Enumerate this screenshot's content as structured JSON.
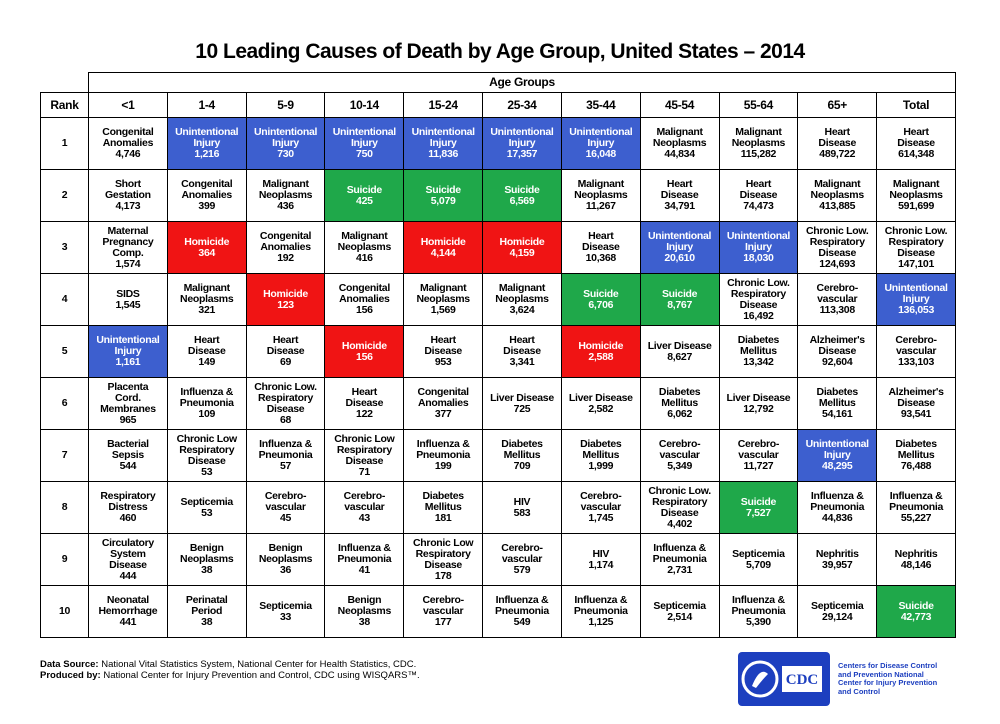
{
  "header": {
    "title": "10 Leading Causes of Death by Age Group, United States – 2014"
  },
  "table": {
    "group_label": "Age Groups",
    "rank_label": "Rank",
    "columns": [
      "<1",
      "1-4",
      "5-9",
      "10-14",
      "15-24",
      "25-34",
      "35-44",
      "45-54",
      "55-64",
      "65+",
      "Total"
    ],
    "rows": [
      {
        "rank": 1,
        "cells": [
          [
            "Congenital Anomalies",
            "4,746"
          ],
          [
            "Unintentional Injury",
            "1,216",
            "#3d5fcf"
          ],
          [
            "Unintentional Injury",
            "730",
            "#3d5fcf"
          ],
          [
            "Unintentional Injury",
            "750",
            "#3d5fcf"
          ],
          [
            "Unintentional Injury",
            "11,836",
            "#3d5fcf"
          ],
          [
            "Unintentional Injury",
            "17,357",
            "#3d5fcf"
          ],
          [
            "Unintentional Injury",
            "16,048",
            "#3d5fcf"
          ],
          [
            "Malignant Neoplasms",
            "44,834"
          ],
          [
            "Malignant Neoplasms",
            "115,282"
          ],
          [
            "Heart Disease",
            "489,722"
          ],
          [
            "Heart Disease",
            "614,348"
          ]
        ]
      },
      {
        "rank": 2,
        "cells": [
          [
            "Short Gestation",
            "4,173"
          ],
          [
            "Congenital Anomalies",
            "399"
          ],
          [
            "Malignant Neoplasms",
            "436"
          ],
          [
            "Suicide",
            "425",
            "#1fa84a"
          ],
          [
            "Suicide",
            "5,079",
            "#1fa84a"
          ],
          [
            "Suicide",
            "6,569",
            "#1fa84a"
          ],
          [
            "Malignant Neoplasms",
            "11,267"
          ],
          [
            "Heart Disease",
            "34,791"
          ],
          [
            "Heart Disease",
            "74,473"
          ],
          [
            "Malignant Neoplasms",
            "413,885"
          ],
          [
            "Malignant Neoplasms",
            "591,699"
          ]
        ]
      },
      {
        "rank": 3,
        "cells": [
          [
            "Maternal Pregnancy Comp.",
            "1,574"
          ],
          [
            "Homicide",
            "364",
            "#f01414"
          ],
          [
            "Congenital Anomalies",
            "192"
          ],
          [
            "Malignant Neoplasms",
            "416"
          ],
          [
            "Homicide",
            "4,144",
            "#f01414"
          ],
          [
            "Homicide",
            "4,159",
            "#f01414"
          ],
          [
            "Heart Disease",
            "10,368"
          ],
          [
            "Unintentional Injury",
            "20,610",
            "#3d5fcf"
          ],
          [
            "Unintentional Injury",
            "18,030",
            "#3d5fcf"
          ],
          [
            "Chronic Low. Respiratory Disease",
            "124,693"
          ],
          [
            "Chronic Low. Respiratory Disease",
            "147,101"
          ]
        ]
      },
      {
        "rank": 4,
        "cells": [
          [
            "SIDS",
            "1,545"
          ],
          [
            "Malignant Neoplasms",
            "321"
          ],
          [
            "Homicide",
            "123",
            "#f01414"
          ],
          [
            "Congenital Anomalies",
            "156"
          ],
          [
            "Malignant Neoplasms",
            "1,569"
          ],
          [
            "Malignant Neoplasms",
            "3,624"
          ],
          [
            "Suicide",
            "6,706",
            "#1fa84a"
          ],
          [
            "Suicide",
            "8,767",
            "#1fa84a"
          ],
          [
            "Chronic Low. Respiratory Disease",
            "16,492"
          ],
          [
            "Cerebro-vascular",
            "113,308"
          ],
          [
            "Unintentional Injury",
            "136,053",
            "#3d5fcf"
          ]
        ]
      },
      {
        "rank": 5,
        "cells": [
          [
            "Unintentional Injury",
            "1,161",
            "#3d5fcf"
          ],
          [
            "Heart Disease",
            "149"
          ],
          [
            "Heart Disease",
            "69"
          ],
          [
            "Homicide",
            "156",
            "#f01414"
          ],
          [
            "Heart Disease",
            "953"
          ],
          [
            "Heart Disease",
            "3,341"
          ],
          [
            "Homicide",
            "2,588",
            "#f01414"
          ],
          [
            "Liver Disease",
            "8,627"
          ],
          [
            "Diabetes Mellitus",
            "13,342"
          ],
          [
            "Alzheimer's Disease",
            "92,604"
          ],
          [
            "Cerebro-vascular",
            "133,103"
          ]
        ]
      },
      {
        "rank": 6,
        "cells": [
          [
            "Placenta Cord. Membranes",
            "965"
          ],
          [
            "Influenza & Pneumonia",
            "109"
          ],
          [
            "Chronic Low. Respiratory Disease",
            "68"
          ],
          [
            "Heart Disease",
            "122"
          ],
          [
            "Congenital Anomalies",
            "377"
          ],
          [
            "Liver Disease",
            "725"
          ],
          [
            "Liver Disease",
            "2,582"
          ],
          [
            "Diabetes Mellitus",
            "6,062"
          ],
          [
            "Liver Disease",
            "12,792"
          ],
          [
            "Diabetes Mellitus",
            "54,161"
          ],
          [
            "Alzheimer's Disease",
            "93,541"
          ]
        ]
      },
      {
        "rank": 7,
        "cells": [
          [
            "Bacterial Sepsis",
            "544"
          ],
          [
            "Chronic Low Respiratory Disease",
            "53"
          ],
          [
            "Influenza & Pneumonia",
            "57"
          ],
          [
            "Chronic Low Respiratory Disease",
            "71"
          ],
          [
            "Influenza & Pneumonia",
            "199"
          ],
          [
            "Diabetes Mellitus",
            "709"
          ],
          [
            "Diabetes Mellitus",
            "1,999"
          ],
          [
            "Cerebro-vascular",
            "5,349"
          ],
          [
            "Cerebro-vascular",
            "11,727"
          ],
          [
            "Unintentional Injury",
            "48,295",
            "#3d5fcf"
          ],
          [
            "Diabetes Mellitus",
            "76,488"
          ]
        ]
      },
      {
        "rank": 8,
        "cells": [
          [
            "Respiratory Distress",
            "460"
          ],
          [
            "Septicemia",
            "53"
          ],
          [
            "Cerebro-vascular",
            "45"
          ],
          [
            "Cerebro-vascular",
            "43"
          ],
          [
            "Diabetes Mellitus",
            "181"
          ],
          [
            "HIV",
            "583"
          ],
          [
            "Cerebro-vascular",
            "1,745"
          ],
          [
            "Chronic Low. Respiratory Disease",
            "4,402"
          ],
          [
            "Suicide",
            "7,527",
            "#1fa84a"
          ],
          [
            "Influenza & Pneumonia",
            "44,836"
          ],
          [
            "Influenza & Pneumonia",
            "55,227"
          ]
        ]
      },
      {
        "rank": 9,
        "cells": [
          [
            "Circulatory System Disease",
            "444"
          ],
          [
            "Benign Neoplasms",
            "38"
          ],
          [
            "Benign Neoplasms",
            "36"
          ],
          [
            "Influenza & Pneumonia",
            "41"
          ],
          [
            "Chronic Low Respiratory Disease",
            "178"
          ],
          [
            "Cerebro-vascular",
            "579"
          ],
          [
            "HIV",
            "1,174"
          ],
          [
            "Influenza & Pneumonia",
            "2,731"
          ],
          [
            "Septicemia",
            "5,709"
          ],
          [
            "Nephritis",
            "39,957"
          ],
          [
            "Nephritis",
            "48,146"
          ]
        ]
      },
      {
        "rank": 10,
        "cells": [
          [
            "Neonatal Hemorrhage",
            "441"
          ],
          [
            "Perinatal Period",
            "38"
          ],
          [
            "Septicemia",
            "33"
          ],
          [
            "Benign Neoplasms",
            "38"
          ],
          [
            "Cerebro-vascular",
            "177"
          ],
          [
            "Influenza & Pneumonia",
            "549"
          ],
          [
            "Influenza & Pneumonia",
            "1,125"
          ],
          [
            "Septicemia",
            "2,514"
          ],
          [
            "Influenza & Pneumonia",
            "5,390"
          ],
          [
            "Septicemia",
            "29,124"
          ],
          [
            "Suicide",
            "42,773",
            "#1fa84a"
          ]
        ]
      }
    ]
  },
  "footer": {
    "source_label": "Data Source:",
    "source": "National Vital Statistics System, National Center for Health Statistics, CDC.",
    "produced_label": "Produced by:",
    "produced": "National Center for Injury Prevention and Control, CDC using WISQARS™.",
    "logo_text": "Centers for Disease Control and Prevention National Center for Injury Prevention and Control"
  }
}
